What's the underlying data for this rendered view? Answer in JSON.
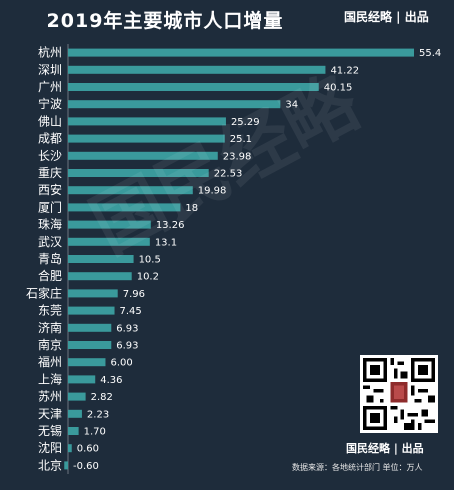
{
  "header": {
    "title": "2019年主要城市人口增量",
    "brand": "国民经略 | 出品"
  },
  "footer": {
    "brand": "国民经略 | 出品",
    "source": "数据来源：各地统计部门 单位：万人"
  },
  "watermark": "国民经略",
  "colors": {
    "background": "#1e2c3b",
    "bar": "#3a9a9c"
  },
  "chart_data": {
    "type": "bar",
    "orientation": "horizontal",
    "title": "2019年主要城市人口增量",
    "unit": "万人",
    "categories": [
      "杭州",
      "深圳",
      "广州",
      "宁波",
      "佛山",
      "成都",
      "长沙",
      "重庆",
      "西安",
      "厦门",
      "珠海",
      "武汉",
      "青岛",
      "合肥",
      "石家庄",
      "东莞",
      "济南",
      "南京",
      "福州",
      "上海",
      "苏州",
      "天津",
      "无锡",
      "沈阳",
      "北京"
    ],
    "values": [
      55.4,
      41.22,
      40.15,
      34,
      25.29,
      25.1,
      23.98,
      22.53,
      19.98,
      18,
      13.26,
      13.1,
      10.5,
      10.2,
      7.96,
      7.45,
      6.93,
      6.93,
      6.0,
      4.36,
      2.82,
      2.23,
      1.7,
      0.6,
      -0.6
    ],
    "value_labels": [
      "55.4",
      "41.22",
      "40.15",
      "34",
      "25.29",
      "25.1",
      "23.98",
      "22.53",
      "19.98",
      "18",
      "13.26",
      "13.1",
      "10.5",
      "10.2",
      "7.96",
      "7.45",
      "6.93",
      "6.93",
      "6.00",
      "4.36",
      "2.82",
      "2.23",
      "1.70",
      "0.60",
      "-0.60"
    ],
    "grid": false,
    "legend": "none"
  }
}
